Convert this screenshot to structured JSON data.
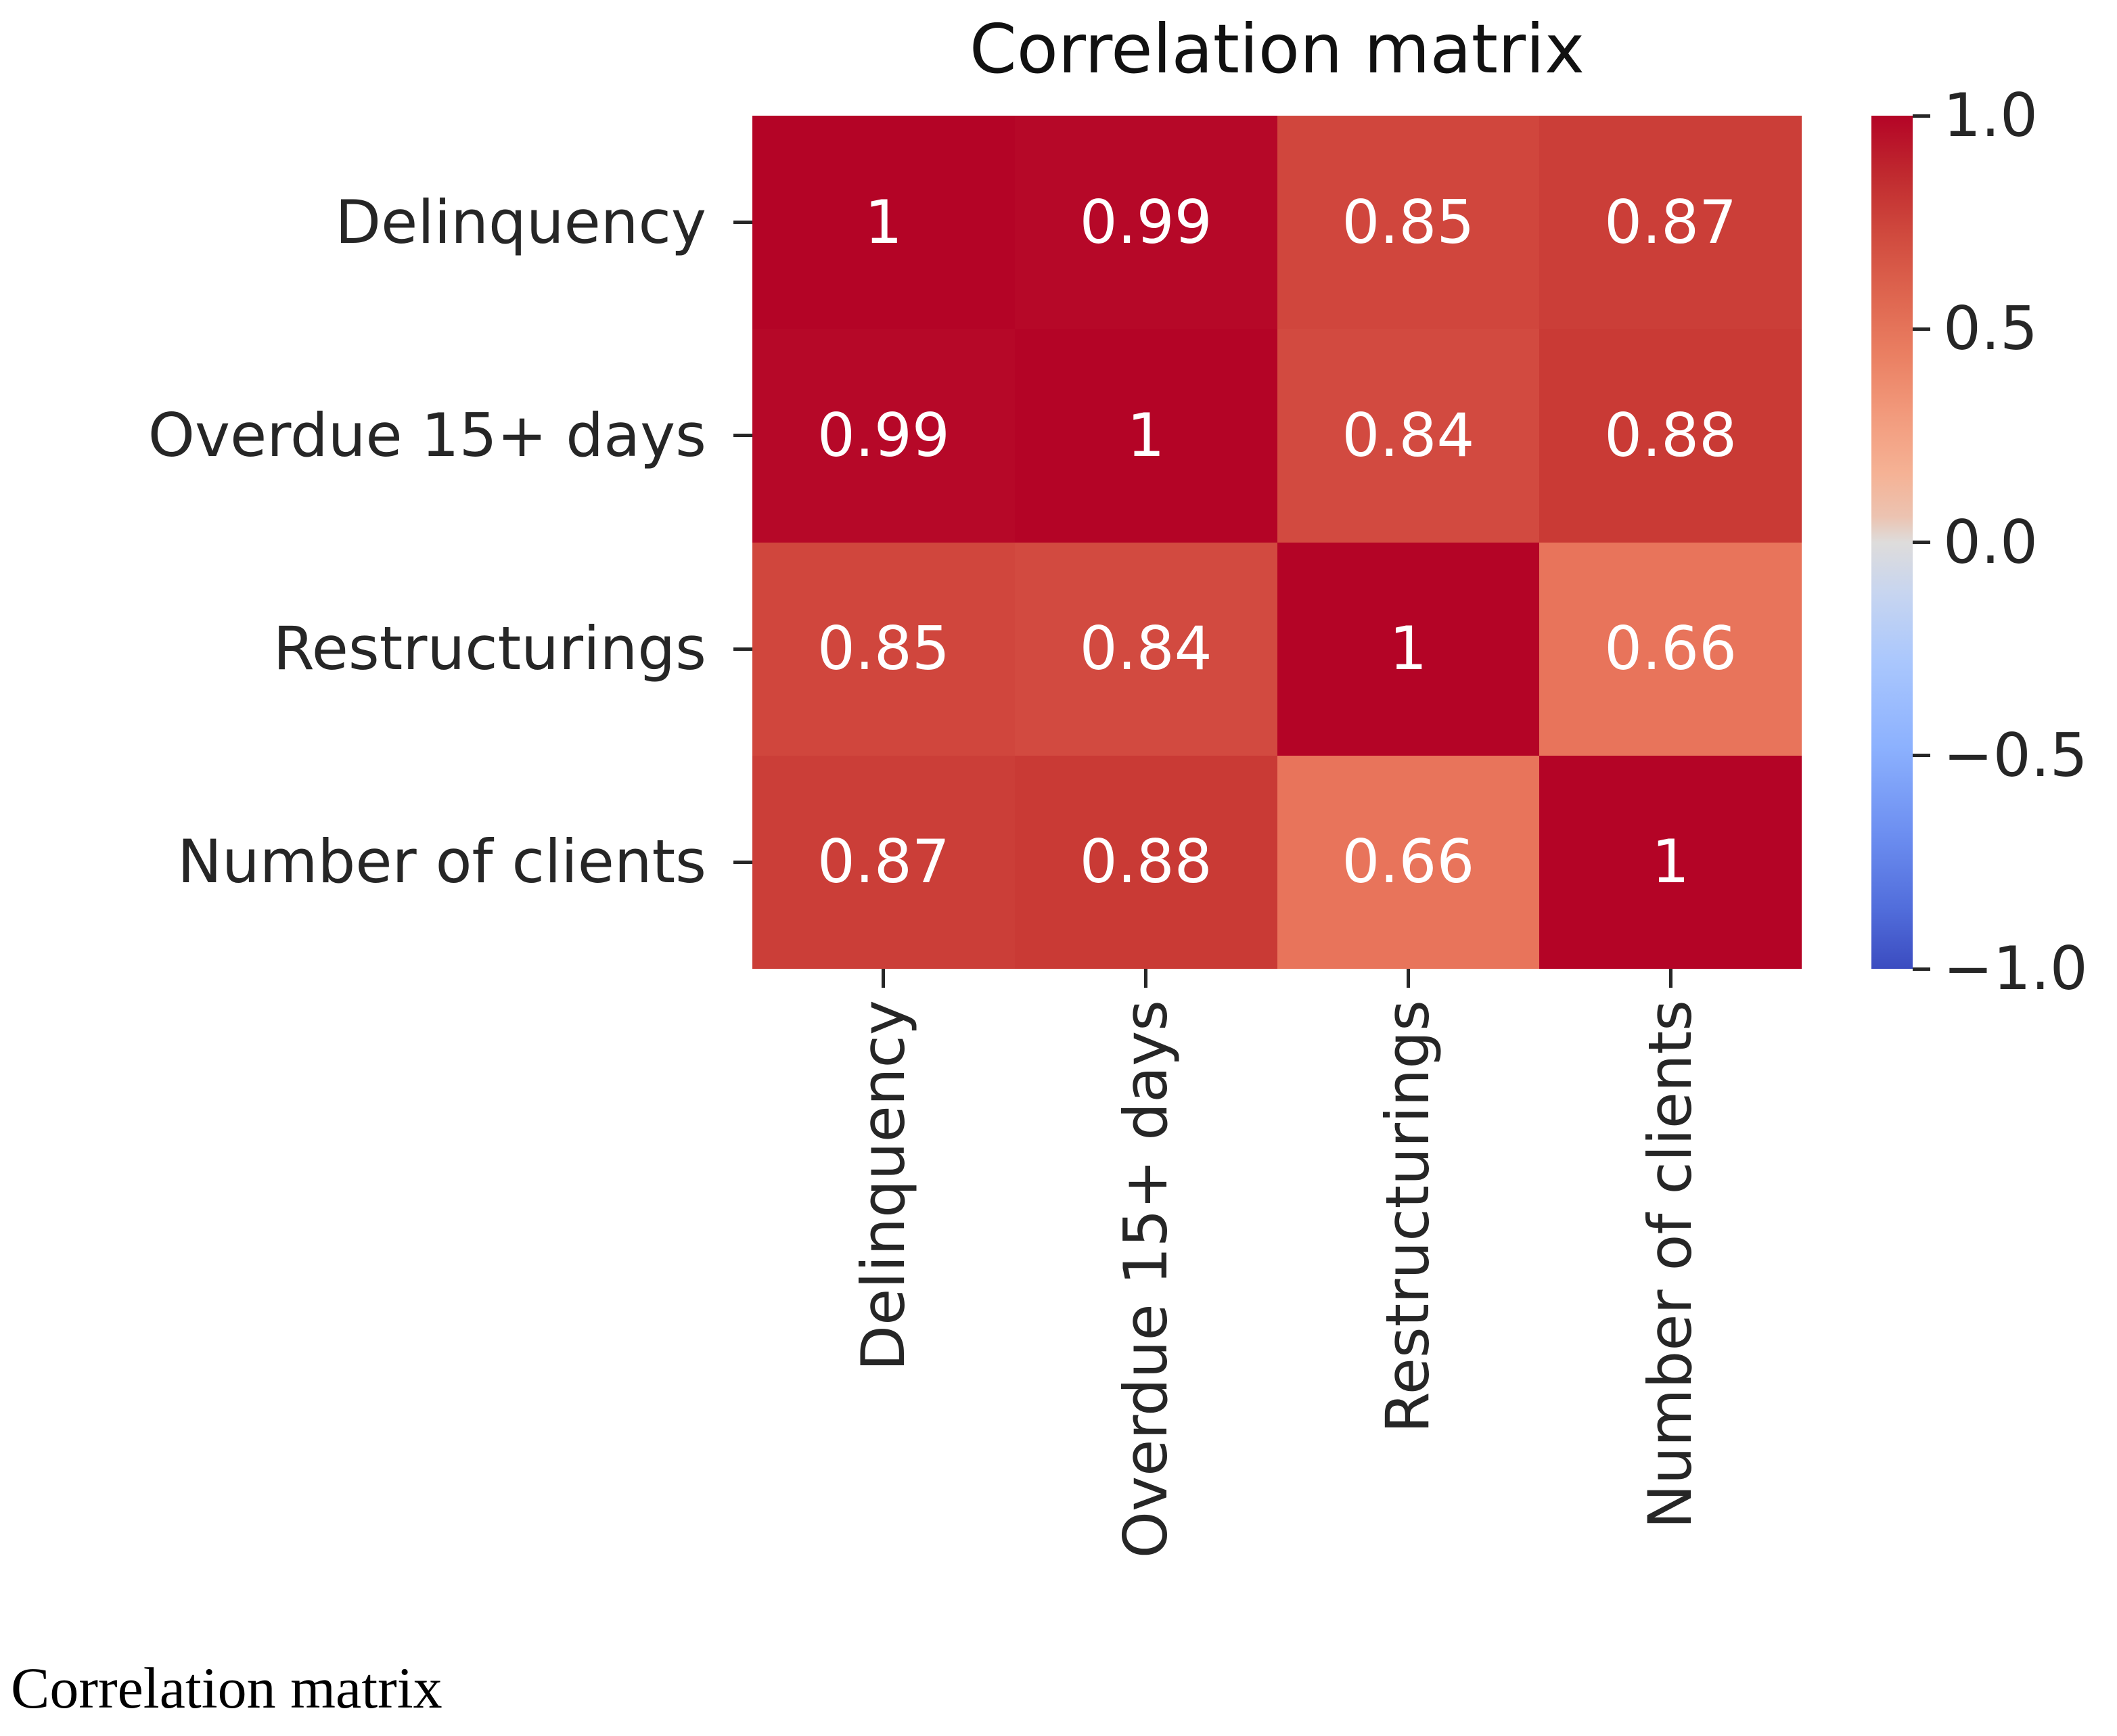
{
  "chart_data": {
    "type": "heatmap",
    "title": "Correlation matrix",
    "caption": "Correlation matrix",
    "x_labels": [
      "Delinquency",
      "Overdue 15+ days",
      "Restructurings",
      "Number of clients"
    ],
    "y_labels": [
      "Delinquency",
      "Overdue 15+ days",
      "Restructurings",
      "Number of clients"
    ],
    "values": [
      [
        1,
        0.99,
        0.85,
        0.87
      ],
      [
        0.99,
        1,
        0.84,
        0.88
      ],
      [
        0.85,
        0.84,
        1,
        0.66
      ],
      [
        0.87,
        0.88,
        0.66,
        1
      ]
    ],
    "cell_labels": [
      [
        "1",
        "0.99",
        "0.85",
        "0.87"
      ],
      [
        "0.99",
        "1",
        "0.84",
        "0.88"
      ],
      [
        "0.85",
        "0.84",
        "1",
        "0.66"
      ],
      [
        "0.87",
        "0.88",
        "0.66",
        "1"
      ]
    ],
    "cell_colors": [
      [
        "#b40426",
        "#b60828",
        "#d0463d",
        "#cb3e38"
      ],
      [
        "#b60828",
        "#b40426",
        "#d24a40",
        "#c93a35"
      ],
      [
        "#d0463d",
        "#d24a40",
        "#b40426",
        "#e8745b"
      ],
      [
        "#cb3e38",
        "#c93a35",
        "#e8745b",
        "#b40426"
      ]
    ],
    "annotation_color": "#ffffff",
    "axis_text_color": "#262626",
    "colorbar": {
      "colormap": "coolwarm",
      "vmin": -1.0,
      "vmax": 1.0,
      "tick_values": [
        1.0,
        0.5,
        0.0,
        -0.5,
        -1.0
      ],
      "tick_labels": [
        "1.0",
        "0.5",
        "0.0",
        "−0.5",
        "−1.0"
      ],
      "gradient": [
        {
          "pos": 0.0,
          "color": "#b40426"
        },
        {
          "pos": 0.07,
          "color": "#c02a2f"
        },
        {
          "pos": 0.14,
          "color": "#d04a3e"
        },
        {
          "pos": 0.21,
          "color": "#de654f"
        },
        {
          "pos": 0.28,
          "color": "#ea7f62"
        },
        {
          "pos": 0.35,
          "color": "#f29a7c"
        },
        {
          "pos": 0.42,
          "color": "#f5b295"
        },
        {
          "pos": 0.47,
          "color": "#ecc3b1"
        },
        {
          "pos": 0.5,
          "color": "#dedcdb"
        },
        {
          "pos": 0.56,
          "color": "#c7d5f0"
        },
        {
          "pos": 0.64,
          "color": "#aac7fd"
        },
        {
          "pos": 0.74,
          "color": "#8cb1fe"
        },
        {
          "pos": 0.84,
          "color": "#6d8ff1"
        },
        {
          "pos": 0.93,
          "color": "#516ddb"
        },
        {
          "pos": 1.0,
          "color": "#3b4cc0"
        }
      ]
    }
  }
}
